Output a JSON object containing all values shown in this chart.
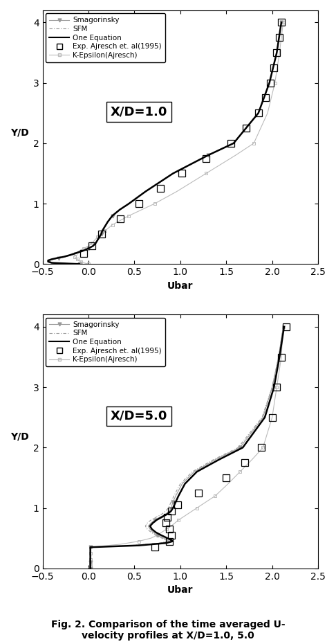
{
  "fig_width": 4.86,
  "fig_height": 9.3,
  "dpi": 100,
  "background_color": "#ffffff",
  "xlabel": "Ubar",
  "ylabel": "Y/D",
  "xlim": [
    -0.5,
    2.5
  ],
  "ylim": [
    0,
    4.2
  ],
  "xticks": [
    -0.5,
    0,
    0.5,
    1.0,
    1.5,
    2.0,
    2.5
  ],
  "yticks": [
    0,
    1,
    2,
    3,
    4
  ],
  "caption": "Fig. 2. Comparison of the time averaged U-\nvelocity profiles at X/D=1.0, 5.0",
  "plot1_label": "X/D=1.0",
  "plot2_label": "X/D=5.0",
  "smagorinsky_color": "#999999",
  "sfm_color": "#999999",
  "one_eq_color": "#000000",
  "keps_color": "#bbbbbb",
  "exp_color": "#000000",
  "smag1_y": [
    0.0,
    0.02,
    0.04,
    0.06,
    0.08,
    0.1,
    0.12,
    0.15,
    0.18,
    0.22,
    0.26,
    0.3,
    0.35,
    0.4,
    0.45,
    0.5,
    0.55,
    0.6,
    0.65,
    0.7,
    0.8,
    0.9,
    1.0,
    1.2,
    1.5,
    1.8,
    2.0,
    2.5,
    3.0,
    3.5,
    4.0
  ],
  "smag1_x": [
    -0.1,
    -0.38,
    -0.42,
    -0.42,
    -0.38,
    -0.32,
    -0.25,
    -0.18,
    -0.12,
    -0.05,
    0.0,
    0.05,
    0.08,
    0.1,
    0.12,
    0.14,
    0.15,
    0.17,
    0.19,
    0.21,
    0.26,
    0.34,
    0.44,
    0.62,
    0.92,
    1.3,
    1.58,
    1.85,
    1.97,
    2.05,
    2.1
  ],
  "sfm1_y": [
    0.0,
    0.02,
    0.04,
    0.06,
    0.08,
    0.1,
    0.12,
    0.15,
    0.18,
    0.22,
    0.26,
    0.3,
    0.35,
    0.4,
    0.45,
    0.5,
    0.55,
    0.6,
    0.65,
    0.7,
    0.8,
    0.9,
    1.0,
    1.2,
    1.5,
    1.8,
    2.0,
    2.5,
    3.0,
    3.5,
    4.0
  ],
  "sfm1_x": [
    -0.1,
    -0.38,
    -0.42,
    -0.42,
    -0.38,
    -0.32,
    -0.25,
    -0.18,
    -0.12,
    -0.05,
    0.0,
    0.05,
    0.08,
    0.1,
    0.12,
    0.14,
    0.15,
    0.17,
    0.19,
    0.21,
    0.26,
    0.34,
    0.44,
    0.62,
    0.92,
    1.3,
    1.58,
    1.85,
    1.97,
    2.05,
    2.1
  ],
  "oneeq1_y": [
    0.0,
    0.02,
    0.04,
    0.06,
    0.08,
    0.1,
    0.12,
    0.15,
    0.18,
    0.22,
    0.26,
    0.3,
    0.35,
    0.4,
    0.45,
    0.5,
    0.55,
    0.6,
    0.65,
    0.7,
    0.8,
    0.9,
    1.0,
    1.2,
    1.5,
    1.8,
    2.0,
    2.5,
    3.0,
    3.5,
    4.0
  ],
  "oneeq1_x": [
    -0.1,
    -0.4,
    -0.44,
    -0.44,
    -0.4,
    -0.34,
    -0.27,
    -0.2,
    -0.14,
    -0.06,
    0.0,
    0.05,
    0.08,
    0.1,
    0.12,
    0.14,
    0.15,
    0.17,
    0.19,
    0.21,
    0.26,
    0.34,
    0.44,
    0.62,
    0.92,
    1.3,
    1.58,
    1.85,
    1.97,
    2.05,
    2.1
  ],
  "keps1_y": [
    0.0,
    0.02,
    0.04,
    0.06,
    0.08,
    0.1,
    0.12,
    0.15,
    0.18,
    0.22,
    0.26,
    0.3,
    0.35,
    0.4,
    0.45,
    0.5,
    0.55,
    0.6,
    0.65,
    0.7,
    0.8,
    0.9,
    1.0,
    1.2,
    1.5,
    1.8,
    2.0,
    2.5,
    3.0,
    3.5,
    4.0
  ],
  "keps1_x": [
    0.0,
    -0.05,
    -0.08,
    -0.1,
    -0.12,
    -0.14,
    -0.15,
    -0.15,
    -0.14,
    -0.1,
    -0.05,
    0.0,
    0.04,
    0.07,
    0.1,
    0.14,
    0.18,
    0.22,
    0.26,
    0.32,
    0.44,
    0.58,
    0.72,
    0.96,
    1.28,
    1.6,
    1.8,
    1.95,
    2.03,
    2.08,
    2.12
  ],
  "exp1_y": [
    0.18,
    0.3,
    0.5,
    0.75,
    1.0,
    1.25,
    1.5,
    1.75,
    2.0,
    2.25,
    2.5,
    2.75,
    3.0,
    3.25,
    3.5,
    3.75,
    4.0
  ],
  "exp1_x": [
    -0.05,
    0.04,
    0.14,
    0.35,
    0.55,
    0.78,
    1.02,
    1.28,
    1.55,
    1.72,
    1.85,
    1.93,
    1.98,
    2.02,
    2.05,
    2.08,
    2.1
  ],
  "smag2_y": [
    0.0,
    0.02,
    0.04,
    0.06,
    0.08,
    0.1,
    0.15,
    0.2,
    0.25,
    0.3,
    0.35,
    0.38,
    0.42,
    0.45,
    0.5,
    0.55,
    0.6,
    0.65,
    0.7,
    0.75,
    0.8,
    0.85,
    0.9,
    0.95,
    1.0,
    1.1,
    1.2,
    1.4,
    1.6,
    1.8,
    2.0,
    2.5,
    3.0,
    3.5,
    4.0
  ],
  "smag2_x": [
    0.02,
    0.02,
    0.02,
    0.02,
    0.02,
    0.02,
    0.02,
    0.02,
    0.02,
    0.02,
    0.02,
    0.5,
    0.8,
    0.88,
    0.82,
    0.75,
    0.7,
    0.67,
    0.65,
    0.68,
    0.72,
    0.78,
    0.84,
    0.88,
    0.9,
    0.92,
    0.95,
    1.02,
    1.15,
    1.38,
    1.65,
    1.9,
    2.0,
    2.07,
    2.12
  ],
  "sfm2_y": [
    0.0,
    0.02,
    0.04,
    0.06,
    0.08,
    0.1,
    0.15,
    0.2,
    0.25,
    0.3,
    0.35,
    0.38,
    0.42,
    0.45,
    0.5,
    0.55,
    0.6,
    0.65,
    0.7,
    0.75,
    0.8,
    0.85,
    0.9,
    0.95,
    1.0,
    1.1,
    1.2,
    1.4,
    1.6,
    1.8,
    2.0,
    2.5,
    3.0,
    3.5,
    4.0
  ],
  "sfm2_x": [
    0.02,
    0.02,
    0.02,
    0.02,
    0.02,
    0.02,
    0.02,
    0.02,
    0.02,
    0.02,
    0.02,
    0.48,
    0.78,
    0.86,
    0.8,
    0.73,
    0.68,
    0.64,
    0.62,
    0.64,
    0.68,
    0.74,
    0.8,
    0.84,
    0.87,
    0.9,
    0.93,
    1.0,
    1.13,
    1.36,
    1.63,
    1.89,
    2.0,
    2.07,
    2.12
  ],
  "oneeq2_y": [
    0.0,
    0.02,
    0.04,
    0.06,
    0.08,
    0.1,
    0.15,
    0.2,
    0.25,
    0.3,
    0.35,
    0.38,
    0.42,
    0.45,
    0.5,
    0.55,
    0.6,
    0.65,
    0.7,
    0.75,
    0.8,
    0.85,
    0.9,
    0.95,
    1.0,
    1.1,
    1.2,
    1.4,
    1.6,
    1.8,
    2.0,
    2.5,
    3.0,
    3.5,
    4.0
  ],
  "oneeq2_x": [
    0.02,
    0.02,
    0.02,
    0.02,
    0.02,
    0.02,
    0.02,
    0.02,
    0.02,
    0.02,
    0.02,
    0.55,
    0.85,
    0.92,
    0.86,
    0.79,
    0.73,
    0.69,
    0.67,
    0.7,
    0.74,
    0.8,
    0.86,
    0.9,
    0.92,
    0.95,
    0.98,
    1.05,
    1.18,
    1.42,
    1.68,
    1.92,
    2.02,
    2.08,
    2.13
  ],
  "keps2_y": [
    0.0,
    0.02,
    0.04,
    0.06,
    0.08,
    0.1,
    0.15,
    0.2,
    0.25,
    0.3,
    0.35,
    0.4,
    0.45,
    0.5,
    0.55,
    0.6,
    0.65,
    0.7,
    0.8,
    0.9,
    1.0,
    1.1,
    1.2,
    1.4,
    1.6,
    1.8,
    2.0,
    2.5,
    3.0,
    3.5,
    4.0
  ],
  "keps2_x": [
    0.02,
    0.02,
    0.02,
    0.02,
    0.02,
    0.02,
    0.02,
    0.02,
    0.02,
    0.02,
    0.02,
    0.35,
    0.55,
    0.68,
    0.75,
    0.8,
    0.85,
    0.9,
    0.98,
    1.08,
    1.18,
    1.28,
    1.38,
    1.52,
    1.65,
    1.78,
    1.9,
    2.0,
    2.05,
    2.1,
    2.12
  ],
  "exp2_y": [
    0.35,
    0.45,
    0.55,
    0.65,
    0.75,
    0.85,
    0.95,
    1.05,
    1.25,
    1.5,
    1.75,
    2.0,
    2.5,
    3.0,
    3.5,
    4.0
  ],
  "exp2_x": [
    0.72,
    0.88,
    0.9,
    0.88,
    0.84,
    0.86,
    0.9,
    0.97,
    1.2,
    1.5,
    1.7,
    1.88,
    2.0,
    2.05,
    2.1,
    2.15
  ]
}
